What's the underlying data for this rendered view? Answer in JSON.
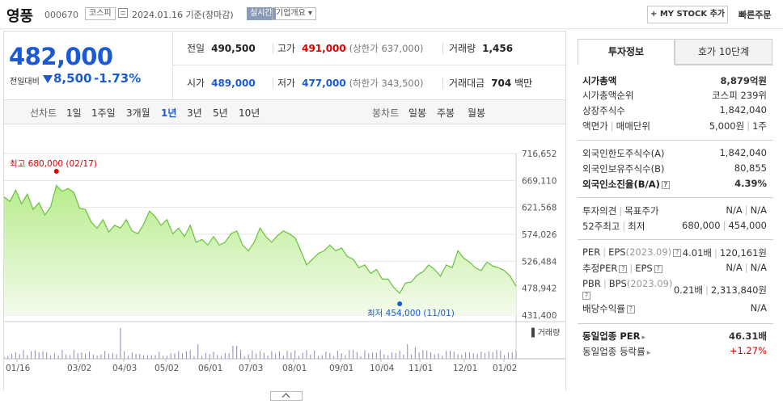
{
  "header": {
    "name": "영풍",
    "code": "000670",
    "market": "코스피",
    "date": "2024.01.16",
    "date_suffix": "기준(장마감)",
    "realtime": "실시간",
    "corp_info": "기업개요",
    "mystock": "+ MY STOCK 추가",
    "quick_order": "빠른주문"
  },
  "price": {
    "current": "482,000",
    "change_label": "전일대비",
    "change": "8,500",
    "change_pct": "-1.73%",
    "prev_close_label": "전일",
    "prev_close": "490,500",
    "high_label": "고가",
    "high": "491,000",
    "upper_limit": "(상한가 637,000)",
    "volume_label": "거래량",
    "volume": "1,456",
    "open_label": "시가",
    "open": "489,000",
    "low_label": "저가",
    "low": "477,000",
    "lower_limit": "(하한가 343,500)",
    "amount_label": "거래대금",
    "amount": "704",
    "amount_unit": "백만"
  },
  "chart_tabs": {
    "line_label": "선차트",
    "periods": [
      "1일",
      "1주일",
      "3개월",
      "1년",
      "3년",
      "5년",
      "10년"
    ],
    "active_period": "1년",
    "candle_label": "봉차트",
    "candles": [
      "일봉",
      "주봉",
      "월봉"
    ]
  },
  "chart_data": {
    "type": "area",
    "y_ticks": [
      "716,652",
      "669,110",
      "621,568",
      "574,026",
      "526,484",
      "478,942",
      "431,400"
    ],
    "ylim": [
      431400,
      716652
    ],
    "x_labels": [
      "01/16",
      "03/02",
      "04/03",
      "05/02",
      "06/01",
      "07/03",
      "08/01",
      "09/01",
      "10/04",
      "11/01",
      "12/01",
      "01/02"
    ],
    "high_label": "최고 680,000 (02/17)",
    "low_label": "최저 454,000 (11/01)",
    "volume_label": "거래량",
    "series_points": [
      [
        0,
        640000
      ],
      [
        3,
        632000
      ],
      [
        6,
        652000
      ],
      [
        9,
        628000
      ],
      [
        12,
        645000
      ],
      [
        15,
        618000
      ],
      [
        18,
        630000
      ],
      [
        21,
        608000
      ],
      [
        24,
        622000
      ],
      [
        27,
        660000
      ],
      [
        30,
        650000
      ],
      [
        33,
        655000
      ],
      [
        36,
        648000
      ],
      [
        39,
        620000
      ],
      [
        42,
        618000
      ],
      [
        45,
        595000
      ],
      [
        48,
        585000
      ],
      [
        51,
        600000
      ],
      [
        54,
        578000
      ],
      [
        57,
        590000
      ],
      [
        60,
        585000
      ],
      [
        63,
        600000
      ],
      [
        66,
        580000
      ],
      [
        69,
        575000
      ],
      [
        72,
        592000
      ],
      [
        75,
        615000
      ],
      [
        78,
        605000
      ],
      [
        81,
        590000
      ],
      [
        84,
        600000
      ],
      [
        87,
        575000
      ],
      [
        90,
        585000
      ],
      [
        93,
        570000
      ],
      [
        96,
        590000
      ],
      [
        99,
        560000
      ],
      [
        102,
        565000
      ],
      [
        105,
        555000
      ],
      [
        108,
        570000
      ],
      [
        111,
        555000
      ],
      [
        114,
        560000
      ],
      [
        117,
        575000
      ],
      [
        120,
        580000
      ],
      [
        123,
        555000
      ],
      [
        126,
        545000
      ],
      [
        129,
        560000
      ],
      [
        132,
        585000
      ],
      [
        135,
        570000
      ],
      [
        138,
        560000
      ],
      [
        141,
        572000
      ],
      [
        144,
        580000
      ],
      [
        147,
        575000
      ],
      [
        150,
        568000
      ],
      [
        153,
        545000
      ],
      [
        156,
        520000
      ],
      [
        159,
        530000
      ],
      [
        162,
        540000
      ],
      [
        165,
        545000
      ],
      [
        168,
        555000
      ],
      [
        171,
        545000
      ],
      [
        174,
        550000
      ],
      [
        177,
        535000
      ],
      [
        180,
        530000
      ],
      [
        183,
        515000
      ],
      [
        186,
        520000
      ],
      [
        189,
        505000
      ],
      [
        192,
        512000
      ],
      [
        195,
        495000
      ],
      [
        198,
        495000
      ],
      [
        201,
        480000
      ],
      [
        204,
        470000
      ],
      [
        207,
        488000
      ],
      [
        210,
        490000
      ],
      [
        213,
        502000
      ],
      [
        216,
        508000
      ],
      [
        219,
        520000
      ],
      [
        222,
        512000
      ],
      [
        225,
        500000
      ],
      [
        228,
        520000
      ],
      [
        231,
        515000
      ],
      [
        234,
        545000
      ],
      [
        237,
        532000
      ],
      [
        240,
        525000
      ],
      [
        243,
        515000
      ],
      [
        246,
        510000
      ],
      [
        249,
        525000
      ],
      [
        252,
        518000
      ],
      [
        255,
        515000
      ],
      [
        258,
        510000
      ],
      [
        261,
        500000
      ],
      [
        264,
        482000
      ]
    ],
    "high_point": [
      27,
      680000
    ],
    "low_point": [
      204,
      454000
    ],
    "n_points": 265
  },
  "panel": {
    "tab_invest": "투자정보",
    "tab_quote": "호가 10단계",
    "market_cap_label": "시가총액",
    "market_cap": "8,879억원",
    "market_cap_rank_label": "시가총액순위",
    "market_cap_rank": "코스피 239위",
    "shares_label": "상장주식수",
    "shares": "1,842,040",
    "par_label": "액면가",
    "trade_unit_label": "매매단위",
    "par": "5,000원",
    "trade_unit": "1주",
    "foreign_limit_label": "외국인한도주식수(A)",
    "foreign_limit": "1,842,040",
    "foreign_hold_label": "외국인보유주식수(B)",
    "foreign_hold": "80,855",
    "foreign_ratio_label": "외국인소진율(B/A)",
    "foreign_ratio": "4.39%",
    "opinion_label": "투자의견",
    "target_label": "목표주가",
    "opinion": "N/A",
    "target": "N/A",
    "w52_label": "52주최고",
    "w52_low_label": "최저",
    "w52_high": "680,000",
    "w52_low": "454,000",
    "per_label": "PER",
    "eps_label": "EPS",
    "eps_year": "(2023.09)",
    "per": "4.01배",
    "eps": "120,161원",
    "est_per_label": "추정PER",
    "est_eps_label": "EPS",
    "est_per": "N/A",
    "est_eps": "N/A",
    "pbr_label": "PBR",
    "bps_label": "BPS",
    "bps_year": "(2023.09)",
    "pbr": "0.21배",
    "bps": "2,313,840원",
    "dividend_label": "배당수익률",
    "dividend": "N/A",
    "sector_per_label": "동일업종 PER",
    "sector_per": "46.31배",
    "sector_change_label": "동일업종 등락률",
    "sector_change": "+1.27%"
  }
}
